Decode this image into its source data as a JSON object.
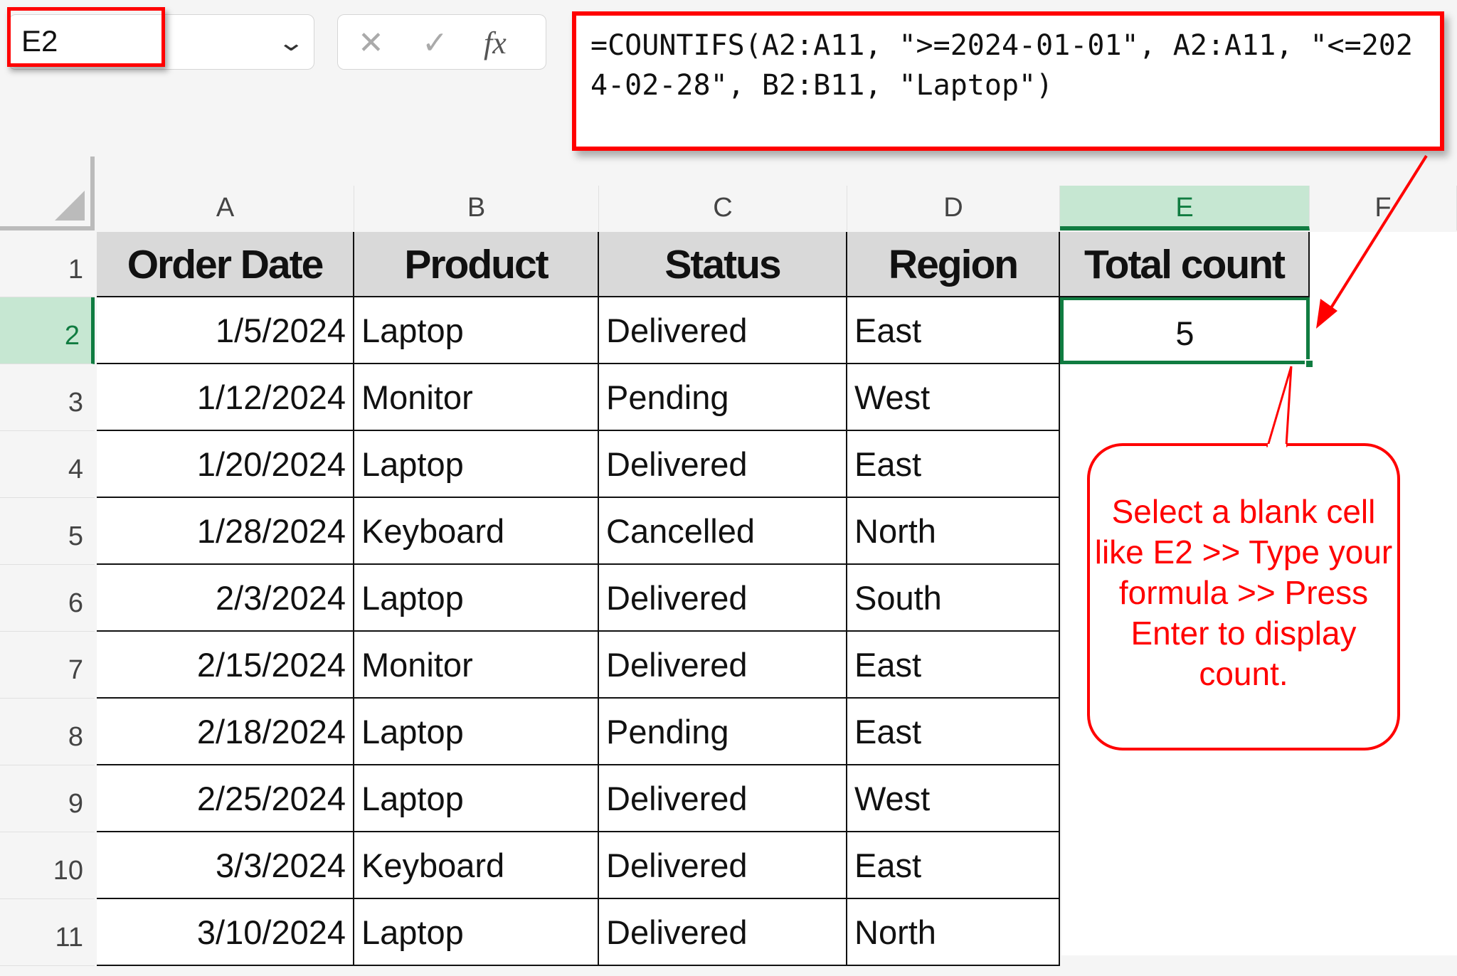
{
  "formula_bar": {
    "name_box": "E2",
    "cancel_icon": "✕",
    "enter_icon": "✓",
    "fx_label": "fx",
    "formula": "=COUNTIFS(A2:A11, \">=2024-01-01\", A2:A11, \"<=2024-02-28\", B2:B11, \"Laptop\")"
  },
  "columns": [
    "A",
    "B",
    "C",
    "D",
    "E",
    "F"
  ],
  "selected_column": "E",
  "rows": [
    "1",
    "2",
    "3",
    "4",
    "5",
    "6",
    "7",
    "8",
    "9",
    "10",
    "11"
  ],
  "headers": [
    "Order Date",
    "Product",
    "Status",
    "Region",
    "Total count"
  ],
  "data": [
    [
      "1/5/2024",
      "Laptop",
      "Delivered",
      "East"
    ],
    [
      "1/12/2024",
      "Monitor",
      "Pending",
      "West"
    ],
    [
      "1/20/2024",
      "Laptop",
      "Delivered",
      "East"
    ],
    [
      "1/28/2024",
      "Keyboard",
      "Cancelled",
      "North"
    ],
    [
      "2/3/2024",
      "Laptop",
      "Delivered",
      "South"
    ],
    [
      "2/15/2024",
      "Monitor",
      "Delivered",
      "East"
    ],
    [
      "2/18/2024",
      "Laptop",
      "Pending",
      "East"
    ],
    [
      "2/25/2024",
      "Laptop",
      "Delivered",
      "West"
    ],
    [
      "3/3/2024",
      "Keyboard",
      "Delivered",
      "East"
    ],
    [
      "3/10/2024",
      "Laptop",
      "Delivered",
      "North"
    ]
  ],
  "result_cell": {
    "ref": "E2",
    "value": "5"
  },
  "callout": "Select a blank cell like E2 >> Type your formula >> Press Enter to display count.",
  "colors": {
    "annotation": "#ff0000",
    "selection": "#107c41",
    "header_fill": "#d9d9d9"
  }
}
